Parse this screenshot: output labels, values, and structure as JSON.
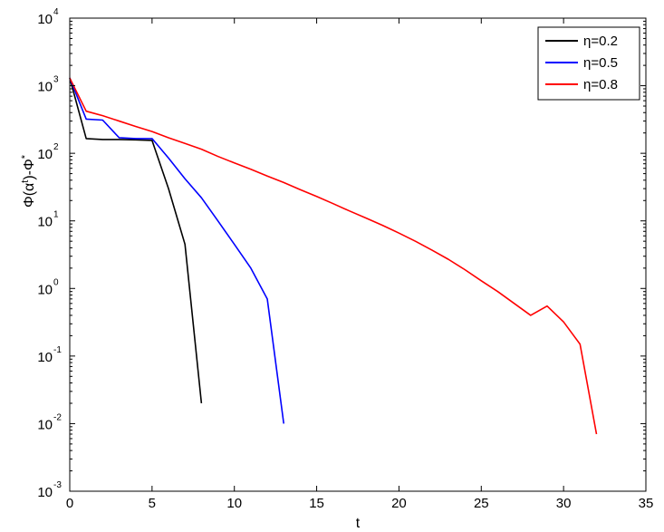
{
  "chart_data": {
    "type": "line",
    "xlabel": "t",
    "ylabel": "Φ(α^t)-Φ^*",
    "xlim": [
      0,
      35
    ],
    "ylim": [
      0.001,
      10000
    ],
    "yscale": "log",
    "x_ticks": [
      "0",
      "5",
      "10",
      "15",
      "20",
      "25",
      "30",
      "35"
    ],
    "y_ticks": [
      {
        "base": "10",
        "exp": "-3"
      },
      {
        "base": "10",
        "exp": "-2"
      },
      {
        "base": "10",
        "exp": "-1"
      },
      {
        "base": "10",
        "exp": "0"
      },
      {
        "base": "10",
        "exp": "1"
      },
      {
        "base": "10",
        "exp": "2"
      },
      {
        "base": "10",
        "exp": "3"
      },
      {
        "base": "10",
        "exp": "4"
      }
    ],
    "legend_position": "top-right",
    "grid": false,
    "series": [
      {
        "name": "η=0.2",
        "color": "#000000",
        "x": [
          0,
          1,
          2,
          3,
          4,
          5,
          6,
          7,
          8
        ],
        "y": [
          1300,
          165,
          160,
          160,
          158,
          155,
          30,
          4.5,
          0.02
        ]
      },
      {
        "name": "η=0.5",
        "color": "#0000ff",
        "x": [
          0,
          1,
          2,
          3,
          4,
          5,
          6,
          7,
          8,
          9,
          10,
          11,
          12,
          13
        ],
        "y": [
          1300,
          320,
          310,
          170,
          165,
          165,
          85,
          42,
          22,
          10,
          4.5,
          2.0,
          0.7,
          0.01
        ]
      },
      {
        "name": "η=0.8",
        "color": "#ff0000",
        "x": [
          0,
          1,
          2,
          3,
          4,
          5,
          6,
          7,
          8,
          9,
          10,
          11,
          12,
          13,
          14,
          15,
          16,
          17,
          18,
          19,
          20,
          21,
          22,
          23,
          24,
          25,
          26,
          27,
          28,
          29,
          30,
          31,
          32
        ],
        "y": [
          1300,
          420,
          360,
          300,
          250,
          210,
          170,
          140,
          115,
          90,
          72,
          58,
          46,
          37,
          29,
          23,
          18,
          14,
          11,
          8.6,
          6.6,
          5.0,
          3.7,
          2.7,
          1.9,
          1.3,
          0.9,
          0.6,
          0.4,
          0.55,
          0.32,
          0.15,
          0.007
        ]
      }
    ]
  }
}
